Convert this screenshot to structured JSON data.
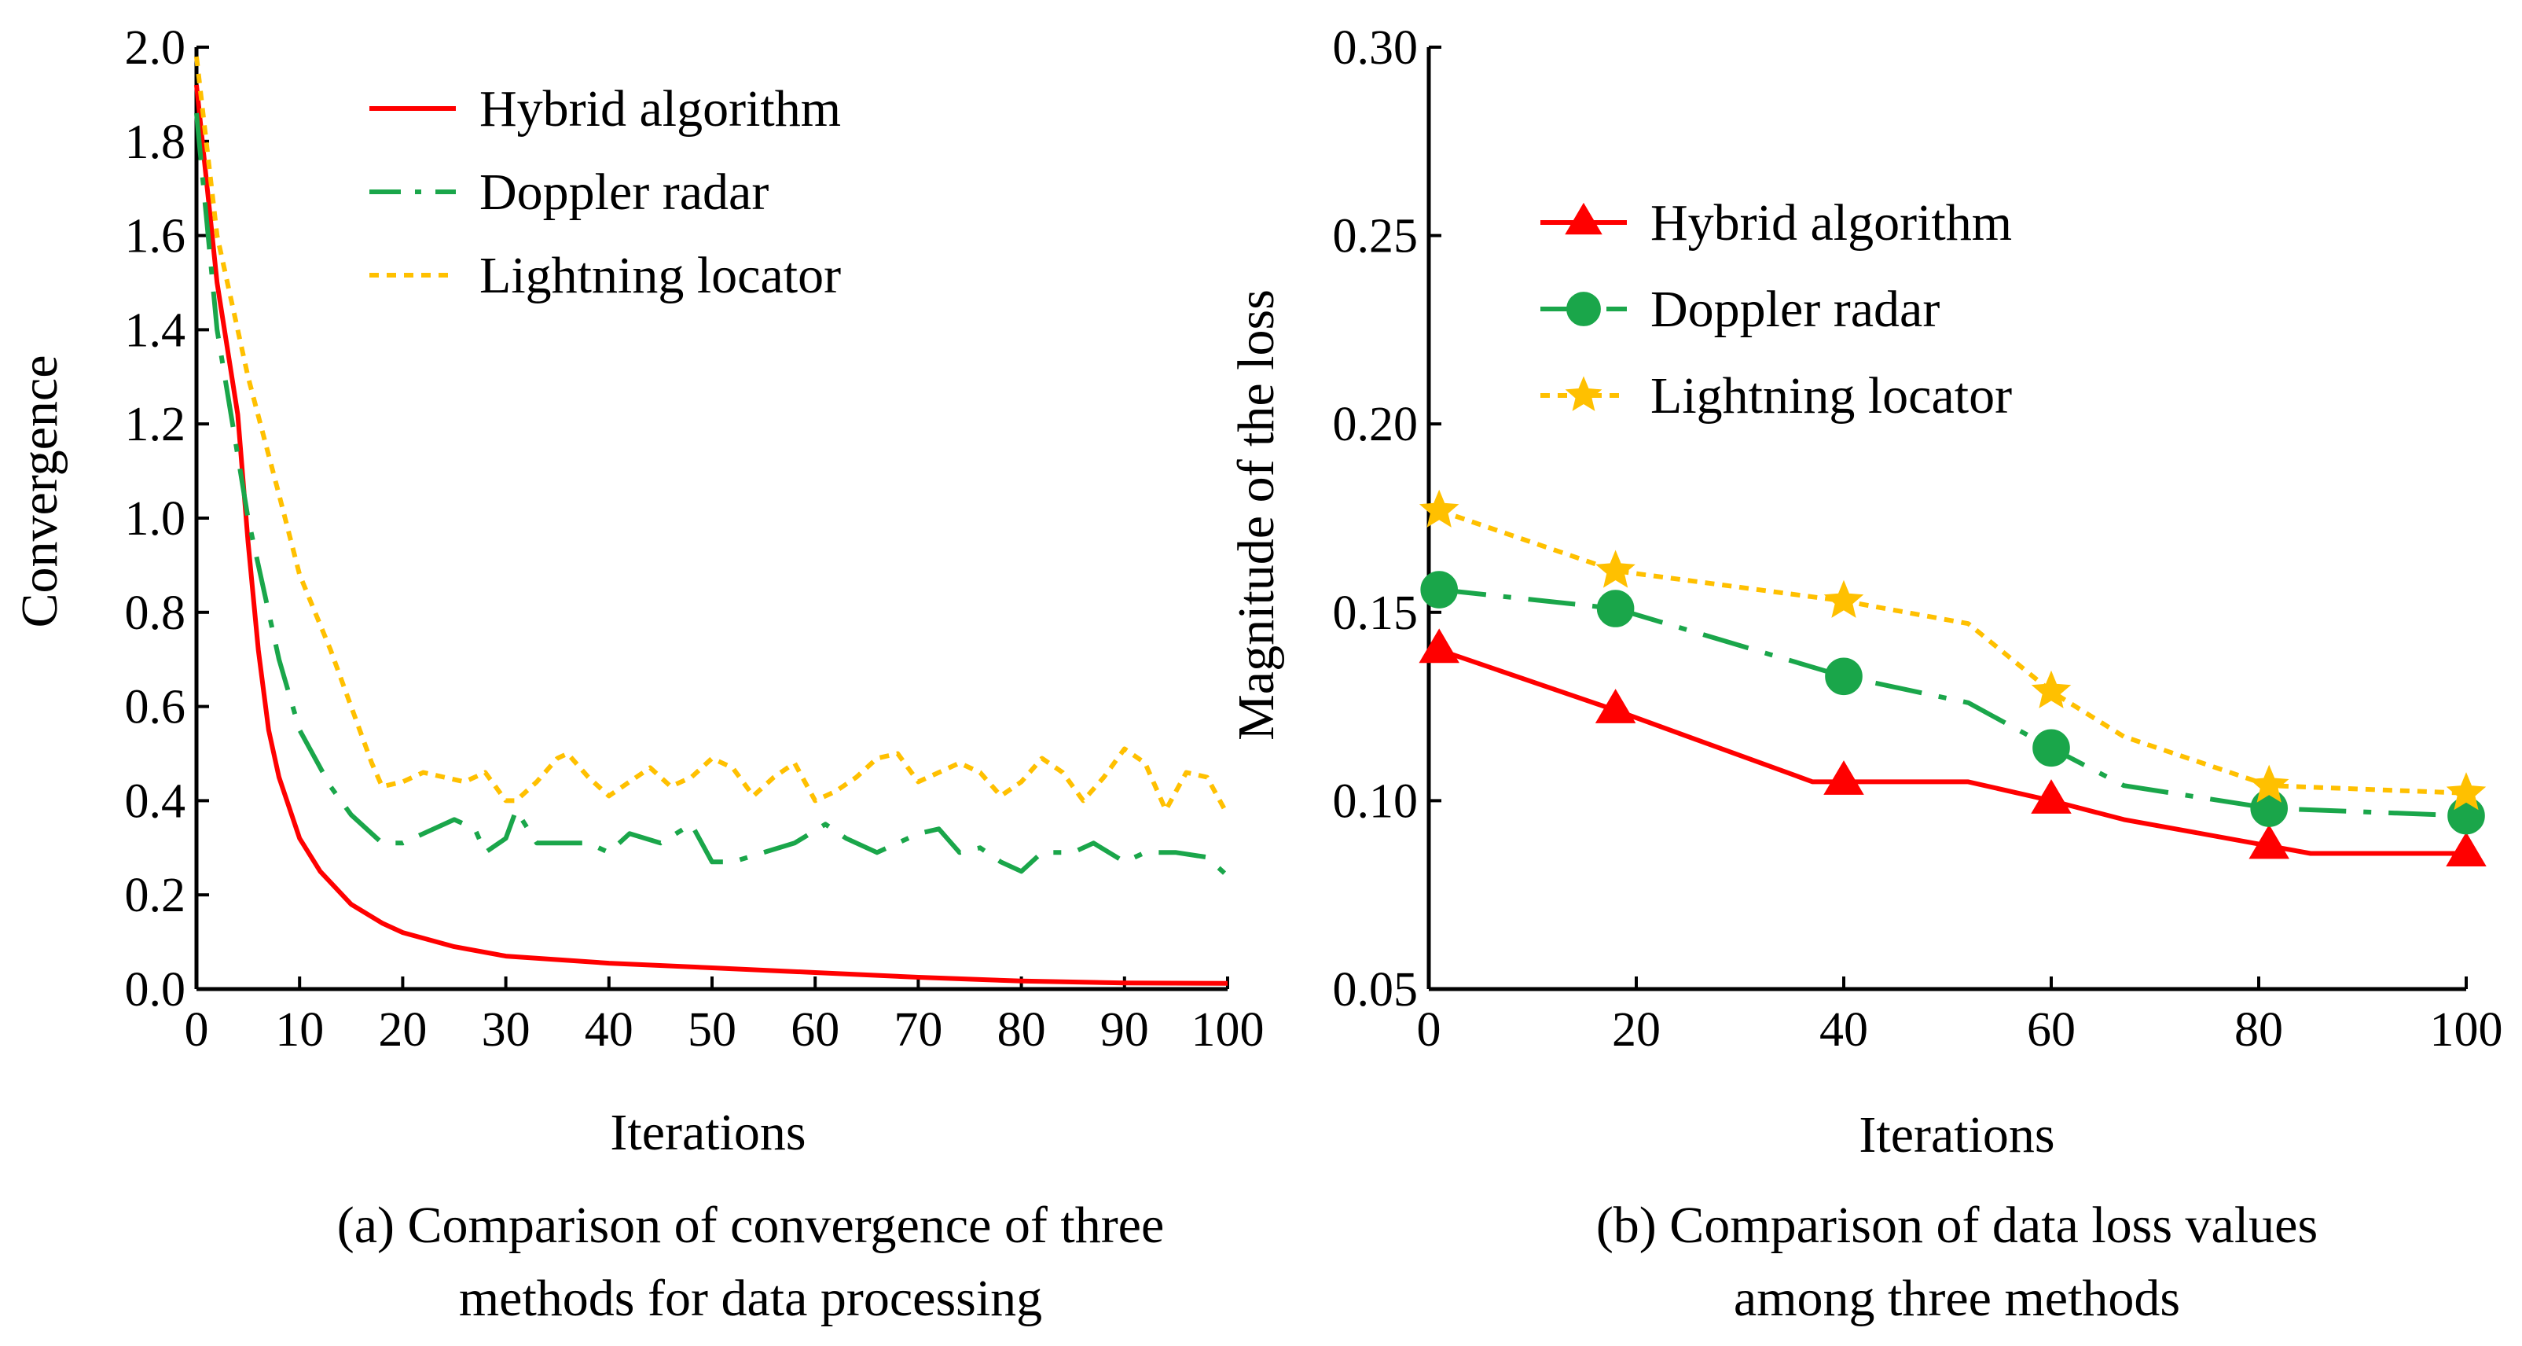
{
  "chart_data": [
    {
      "id": "a",
      "type": "line",
      "xlabel": "Iterations",
      "ylabel": "Convergence",
      "caption_lines": [
        "(a) Comparison of convergence of three",
        "methods for data processing"
      ],
      "xlim": [
        0,
        100
      ],
      "ylim": [
        0,
        2.0
      ],
      "xticks": [
        "0",
        "10",
        "20",
        "30",
        "40",
        "50",
        "60",
        "70",
        "80",
        "90",
        "100"
      ],
      "yticks": [
        "0.0",
        "0.2",
        "0.4",
        "0.6",
        "0.8",
        "1.0",
        "1.2",
        "1.4",
        "1.6",
        "1.8",
        "2.0"
      ],
      "grid": false,
      "legend_position": "top-right",
      "series": [
        {
          "name": "Hybrid algorithm",
          "color": "#ff0000",
          "style": "solid",
          "x": [
            0,
            2,
            4,
            5,
            6,
            7,
            8,
            10,
            12,
            15,
            18,
            20,
            25,
            30,
            40,
            50,
            60,
            70,
            80,
            90,
            100
          ],
          "y": [
            1.92,
            1.5,
            1.22,
            0.95,
            0.72,
            0.55,
            0.45,
            0.32,
            0.25,
            0.18,
            0.14,
            0.12,
            0.09,
            0.07,
            0.055,
            0.045,
            0.035,
            0.025,
            0.017,
            0.013,
            0.012
          ]
        },
        {
          "name": "Doppler radar",
          "color": "#1aa64a",
          "style": "dashed",
          "x": [
            0,
            2,
            5,
            8,
            10,
            13,
            15,
            18,
            20,
            22,
            25,
            27,
            28,
            30,
            31,
            33,
            36,
            38,
            40,
            42,
            45,
            48,
            50,
            52,
            55,
            58,
            61,
            63,
            66,
            68,
            70,
            72,
            74,
            76,
            78,
            80,
            82,
            85,
            87,
            90,
            92,
            95,
            98,
            100
          ],
          "y": [
            1.86,
            1.4,
            1.0,
            0.7,
            0.55,
            0.43,
            0.37,
            0.31,
            0.31,
            0.33,
            0.36,
            0.34,
            0.29,
            0.32,
            0.38,
            0.31,
            0.31,
            0.31,
            0.29,
            0.33,
            0.31,
            0.35,
            0.27,
            0.27,
            0.29,
            0.31,
            0.35,
            0.32,
            0.29,
            0.31,
            0.33,
            0.34,
            0.29,
            0.3,
            0.27,
            0.25,
            0.29,
            0.29,
            0.31,
            0.27,
            0.29,
            0.29,
            0.28,
            0.24
          ]
        },
        {
          "name": "Lightning locator",
          "color": "#ffc000",
          "style": "dotted",
          "x": [
            0,
            2,
            5,
            8,
            10,
            13,
            15,
            17,
            18,
            20,
            22,
            24,
            26,
            28,
            30,
            31,
            33,
            35,
            36,
            38,
            40,
            42,
            44,
            46,
            48,
            50,
            52,
            54,
            56,
            58,
            60,
            62,
            64,
            66,
            68,
            70,
            72,
            74,
            76,
            78,
            80,
            82,
            84,
            86,
            88,
            90,
            92,
            94,
            96,
            98,
            100
          ],
          "y": [
            1.98,
            1.6,
            1.3,
            1.05,
            0.88,
            0.72,
            0.6,
            0.48,
            0.43,
            0.44,
            0.46,
            0.45,
            0.44,
            0.46,
            0.4,
            0.4,
            0.44,
            0.49,
            0.5,
            0.45,
            0.41,
            0.44,
            0.47,
            0.43,
            0.45,
            0.49,
            0.47,
            0.41,
            0.45,
            0.48,
            0.4,
            0.42,
            0.45,
            0.49,
            0.5,
            0.44,
            0.46,
            0.48,
            0.46,
            0.41,
            0.44,
            0.49,
            0.46,
            0.4,
            0.45,
            0.51,
            0.48,
            0.38,
            0.46,
            0.45,
            0.37
          ]
        }
      ]
    },
    {
      "id": "b",
      "type": "line",
      "xlabel": "Iterations",
      "ylabel": "Magnitude of the loss",
      "caption_lines": [
        "(b) Comparison of data loss values",
        "among three methods"
      ],
      "xlim": [
        0,
        100
      ],
      "ylim": [
        0.05,
        0.3
      ],
      "xticks": [
        "0",
        "20",
        "40",
        "60",
        "80",
        "100"
      ],
      "yticks": [
        "0.05",
        "0.10",
        "0.15",
        "0.20",
        "0.25",
        "0.30"
      ],
      "grid": false,
      "legend_position": "top-right",
      "series": [
        {
          "name": "Hybrid algorithm",
          "color": "#ff0000",
          "style": "solid",
          "marker": "triangle",
          "x": [
            1,
            18,
            37,
            40,
            52,
            60,
            67,
            81,
            85,
            100
          ],
          "y": [
            0.14,
            0.124,
            0.105,
            0.105,
            0.105,
            0.1,
            0.095,
            0.088,
            0.086,
            0.086
          ],
          "marker_index": [
            0,
            1,
            3,
            5,
            7,
            9
          ]
        },
        {
          "name": "Doppler radar",
          "color": "#1aa64a",
          "style": "dashed",
          "marker": "circle",
          "x": [
            1,
            18,
            40,
            52,
            60,
            67,
            81,
            100
          ],
          "y": [
            0.156,
            0.151,
            0.133,
            0.126,
            0.114,
            0.104,
            0.098,
            0.096
          ],
          "marker_index": [
            0,
            1,
            2,
            4,
            6,
            7
          ]
        },
        {
          "name": "Lightning locator",
          "color": "#ffc000",
          "style": "dotted",
          "marker": "star",
          "x": [
            1,
            18,
            40,
            52,
            60,
            67,
            81,
            100
          ],
          "y": [
            0.177,
            0.161,
            0.153,
            0.147,
            0.129,
            0.117,
            0.104,
            0.102
          ],
          "marker_index": [
            0,
            1,
            2,
            4,
            6,
            7
          ]
        }
      ]
    }
  ]
}
